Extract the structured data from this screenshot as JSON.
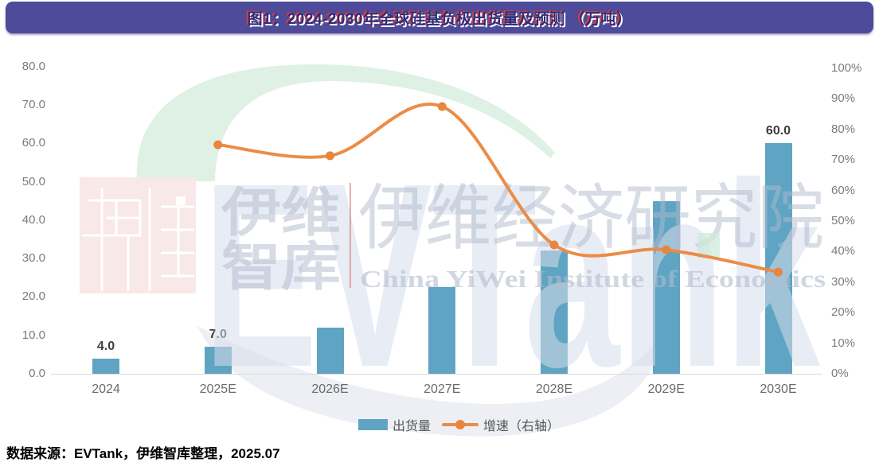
{
  "header": {
    "title": "图1：2024-2030年全球硅基负极出货量及预测 （万吨）",
    "bar_color": "#4E4B9A",
    "title_shadow_red": "#E23B34"
  },
  "chart_data": {
    "type": "bar",
    "categories": [
      "2024",
      "2025E",
      "2026E",
      "2027E",
      "2028E",
      "2029E",
      "2030E"
    ],
    "series": [
      {
        "name": "出货量",
        "type": "bar",
        "axis": "left",
        "unit": "万吨",
        "color": "#5FA4C2",
        "values": [
          4.0,
          7.0,
          12.0,
          22.5,
          32.0,
          45.0,
          60.0
        ],
        "labeled_points": {
          "2024": "4.0",
          "2025E": "7.0",
          "2030E": "60.0"
        }
      },
      {
        "name": "增速（右轴）",
        "type": "line",
        "axis": "right",
        "unit": "%",
        "color": "#EB8C46",
        "marker_color": "#E8853E",
        "values": [
          null,
          75.0,
          71.4,
          87.5,
          42.2,
          40.6,
          33.3
        ]
      }
    ],
    "left_axis": {
      "min": 0,
      "max": 80,
      "step": 10,
      "tick_format": "one-decimal"
    },
    "right_axis": {
      "min": 0,
      "max": 100,
      "step": 10,
      "tick_format": "percent"
    },
    "grid": false,
    "legend_position": "bottom",
    "title": "图1：2024-2030年全球硅基负极出货量及预测 （万吨）"
  },
  "legend": {
    "items": [
      {
        "label": "出货量",
        "type": "bar",
        "color": "#5FA4C2"
      },
      {
        "label": "增速（右轴）",
        "type": "line",
        "color": "#EB8C46"
      }
    ]
  },
  "footer": {
    "source": "数据来源：EVTank，伊维智库整理，2025.07"
  },
  "watermark": {
    "brand": "EVTank",
    "cn_big": "伊维经济研究院",
    "en": "China YiWei Institute of Economics",
    "stack_top": "伊维",
    "stack_bottom": "智库",
    "green_swoosh_color": "#DFF1E4",
    "gray_swoosh_color": "#EDEFF4",
    "seal_color": "#F8E8E8"
  }
}
